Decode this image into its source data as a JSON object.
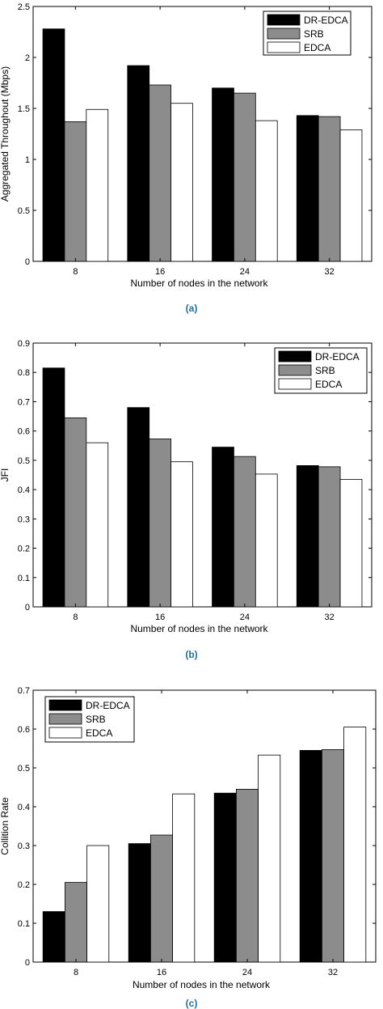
{
  "legend_labels": [
    "DR-EDCA",
    "SRB",
    "EDCA"
  ],
  "series_colors": [
    "#000000",
    "#8c8c8c",
    "#ffffff"
  ],
  "chart_data": [
    {
      "type": "bar",
      "caption": "(a)",
      "categories": [
        "8",
        "16",
        "24",
        "32"
      ],
      "series": [
        {
          "name": "DR-EDCA",
          "values": [
            2.28,
            1.92,
            1.7,
            1.43
          ]
        },
        {
          "name": "SRB",
          "values": [
            1.37,
            1.73,
            1.65,
            1.42
          ]
        },
        {
          "name": "EDCA",
          "values": [
            1.49,
            1.55,
            1.38,
            1.29
          ]
        }
      ],
      "xlabel": "Number of nodes in the network",
      "ylabel": "Aggregated Throughout (Mbps)",
      "ylim": [
        0,
        2.5
      ],
      "yticks": [
        0,
        0.5,
        1,
        1.5,
        2,
        2.5
      ],
      "ytick_labels": [
        "0",
        "0.5",
        "1",
        "1.5",
        "2",
        "2.5"
      ],
      "legend_position": "top-right",
      "grid": false
    },
    {
      "type": "bar",
      "caption": "(b)",
      "categories": [
        "8",
        "16",
        "24",
        "32"
      ],
      "series": [
        {
          "name": "DR-EDCA",
          "values": [
            0.815,
            0.68,
            0.545,
            0.482
          ]
        },
        {
          "name": "SRB",
          "values": [
            0.645,
            0.573,
            0.513,
            0.478
          ]
        },
        {
          "name": "EDCA",
          "values": [
            0.56,
            0.495,
            0.453,
            0.435
          ]
        }
      ],
      "xlabel": "Number of nodes in the network",
      "ylabel": "JFI",
      "ylim": [
        0,
        0.9
      ],
      "yticks": [
        0,
        0.1,
        0.2,
        0.3,
        0.4,
        0.5,
        0.6,
        0.7,
        0.8,
        0.9
      ],
      "ytick_labels": [
        "0",
        "0.1",
        "0.2",
        "0.3",
        "0.4",
        "0.5",
        "0.6",
        "0.7",
        "0.8",
        "0.9"
      ],
      "legend_position": "top-right",
      "grid": false
    },
    {
      "type": "bar",
      "caption": "(c)",
      "categories": [
        "8",
        "16",
        "24",
        "32"
      ],
      "series": [
        {
          "name": "DR-EDCA",
          "values": [
            0.13,
            0.305,
            0.435,
            0.545
          ]
        },
        {
          "name": "SRB",
          "values": [
            0.205,
            0.327,
            0.445,
            0.547
          ]
        },
        {
          "name": "EDCA",
          "values": [
            0.3,
            0.433,
            0.533,
            0.605
          ]
        }
      ],
      "xlabel": "Number of nodes in the network",
      "ylabel": "Collition Rate",
      "ylim": [
        0,
        0.7
      ],
      "yticks": [
        0,
        0.1,
        0.2,
        0.3,
        0.4,
        0.5,
        0.6,
        0.7
      ],
      "ytick_labels": [
        "0",
        "0.1",
        "0.2",
        "0.3",
        "0.4",
        "0.5",
        "0.6",
        "0.7"
      ],
      "legend_position": "top-left",
      "grid": false
    }
  ]
}
